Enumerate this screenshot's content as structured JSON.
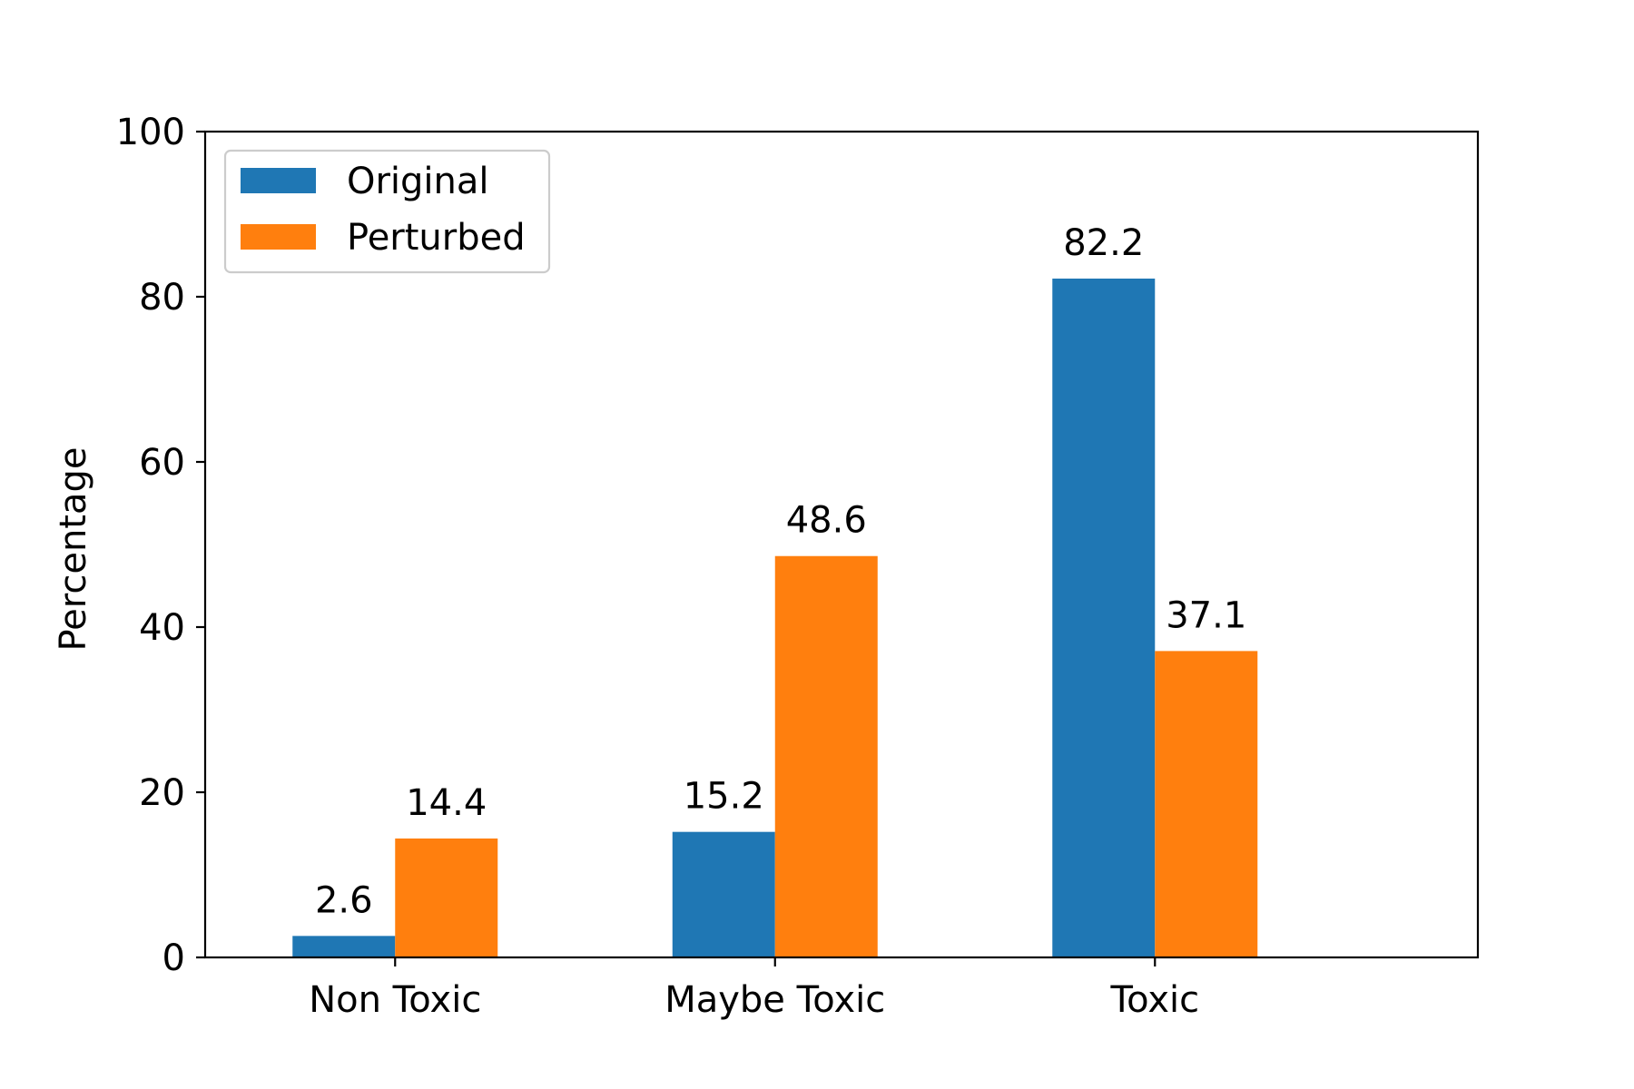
{
  "chart_data": {
    "type": "bar",
    "title": "",
    "xlabel": "",
    "ylabel": "Percentage",
    "ylim": [
      0,
      100
    ],
    "yticks": [
      0,
      20,
      40,
      60,
      80,
      100
    ],
    "categories": [
      "Non Toxic",
      "Maybe Toxic",
      "Toxic"
    ],
    "series": [
      {
        "name": "Original",
        "color": "#1f77b4",
        "values": [
          2.6,
          15.2,
          82.2
        ]
      },
      {
        "name": "Perturbed",
        "color": "#ff7f0e",
        "values": [
          14.4,
          48.6,
          37.1
        ]
      }
    ],
    "data_labels": [
      [
        "2.6",
        "15.2",
        "82.2"
      ],
      [
        "14.4",
        "48.6",
        "37.1"
      ]
    ],
    "legend_position": "upper-left",
    "grid": false
  }
}
